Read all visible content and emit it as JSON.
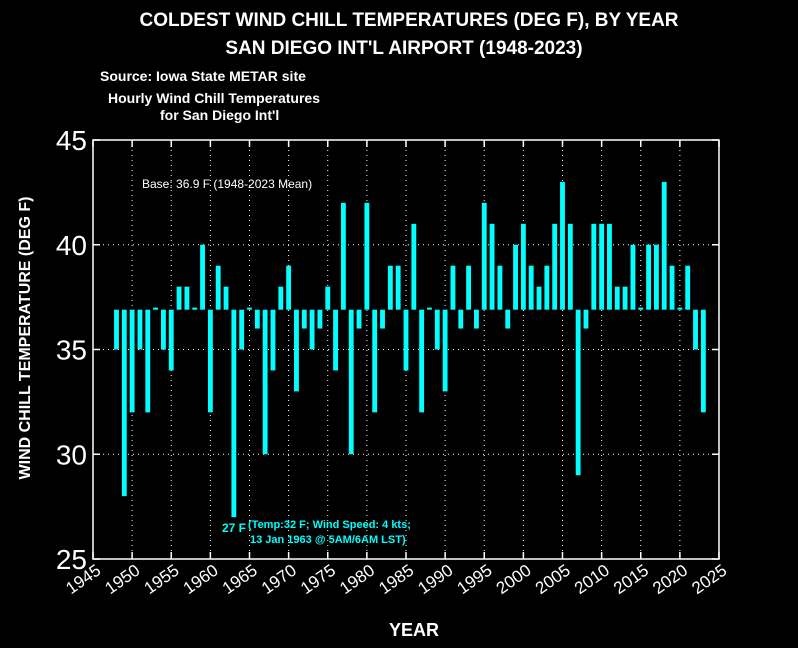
{
  "chart_data": {
    "type": "bar",
    "title": "COLDEST WIND CHILL TEMPERATURES (DEG F), BY YEAR",
    "subtitle": "SAN DIEGO INT'L AIRPORT (1948-2023)",
    "source_lines": [
      "Source: Iowa State METAR site",
      "Hourly Wind Chill Temperatures",
      "for San Diego Int'l"
    ],
    "xlabel": "YEAR",
    "ylabel": "WIND CHILL TEMPERATURE (DEG F)",
    "xlim": [
      1945,
      2025
    ],
    "ylim": [
      25,
      45
    ],
    "xticks": [
      1945,
      1950,
      1955,
      1960,
      1965,
      1970,
      1975,
      1980,
      1985,
      1990,
      1995,
      2000,
      2005,
      2010,
      2015,
      2020,
      2025
    ],
    "yticks": [
      25,
      30,
      35,
      40,
      45
    ],
    "grid": true,
    "base": 36.9,
    "base_label": "Base: 36.9 F (1948-2023 Mean)",
    "bar_color": "#00ffff",
    "x": [
      1948,
      1949,
      1950,
      1951,
      1952,
      1953,
      1954,
      1955,
      1956,
      1957,
      1958,
      1959,
      1960,
      1961,
      1962,
      1963,
      1964,
      1965,
      1966,
      1967,
      1968,
      1969,
      1970,
      1971,
      1972,
      1973,
      1974,
      1975,
      1976,
      1977,
      1978,
      1979,
      1980,
      1981,
      1982,
      1983,
      1984,
      1985,
      1986,
      1987,
      1988,
      1989,
      1990,
      1991,
      1992,
      1993,
      1994,
      1995,
      1996,
      1997,
      1998,
      1999,
      2000,
      2001,
      2002,
      2003,
      2004,
      2005,
      2006,
      2007,
      2008,
      2009,
      2010,
      2011,
      2012,
      2013,
      2014,
      2015,
      2016,
      2017,
      2018,
      2019,
      2020,
      2021,
      2022,
      2023
    ],
    "values": [
      35,
      28,
      32,
      35,
      32,
      37,
      35,
      34,
      38,
      38,
      37,
      40,
      32,
      39,
      38,
      27,
      35,
      37,
      36,
      30,
      34,
      38,
      39,
      33,
      36,
      35,
      36,
      38,
      34,
      42,
      30,
      36,
      42,
      32,
      36,
      39,
      39,
      34,
      41,
      32,
      37,
      35,
      33,
      39,
      36,
      39,
      36,
      42,
      41,
      39,
      36,
      40,
      41,
      39,
      38,
      39,
      41,
      43,
      41,
      29,
      36,
      41,
      41,
      41,
      38,
      38,
      40,
      37,
      40,
      40,
      43,
      39,
      37,
      39,
      35,
      32
    ],
    "annotation": {
      "label": "27 F",
      "detail_lines": [
        "(Temp:32 F; Wind Speed: 4 kts;",
        "13 Jan 1963 @ 5AM/6AM LST)"
      ],
      "color": "#00ffff"
    }
  }
}
